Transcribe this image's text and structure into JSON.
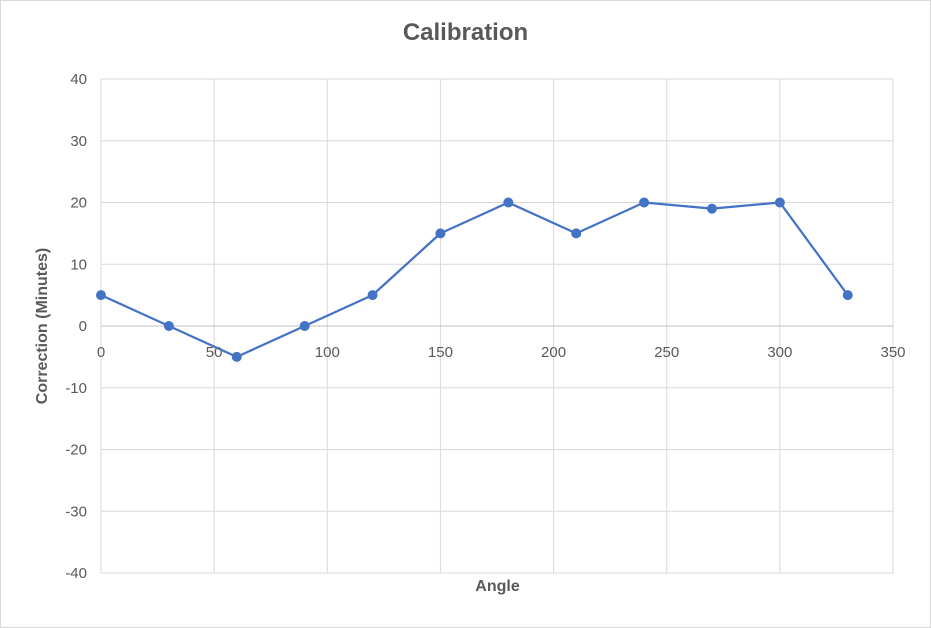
{
  "chart_data": {
    "type": "scatter",
    "title": "Calibration",
    "xlabel": "Angle",
    "ylabel": "Correction (Minutes)",
    "xlim": [
      0,
      350
    ],
    "ylim": [
      -40,
      40
    ],
    "x_ticks": [
      0,
      50,
      100,
      150,
      200,
      250,
      300,
      350
    ],
    "y_ticks": [
      -40,
      -30,
      -20,
      -10,
      0,
      10,
      20,
      30,
      40
    ],
    "grid": true,
    "legend": "none",
    "line_color": "#4472c4",
    "series": [
      {
        "x": [
          0,
          30,
          60,
          90,
          120,
          150,
          180,
          210,
          240,
          270,
          300,
          330
        ],
        "y": [
          5,
          0,
          -5,
          0,
          5,
          15,
          20,
          15,
          20,
          19,
          20,
          5
        ]
      }
    ]
  }
}
